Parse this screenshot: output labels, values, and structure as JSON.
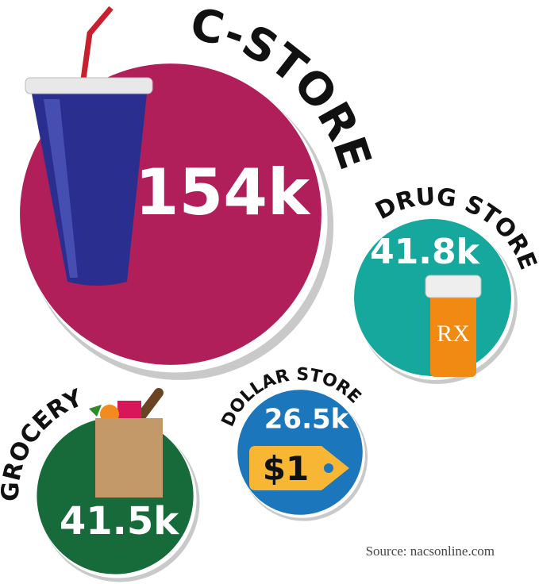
{
  "chart_data": {
    "type": "bubble",
    "categories": [
      "C-STORE",
      "DRUG STORE",
      "GROCERY",
      "DOLLAR STORE"
    ],
    "values": [
      154000,
      41800,
      41500,
      26500
    ],
    "value_labels": [
      "154k",
      "41.8k",
      "41.5k",
      "26.5k"
    ],
    "colors": [
      "#b01f5a",
      "#16a89d",
      "#176a39",
      "#1b76bb"
    ],
    "icon_texts": [
      "RX",
      "$1"
    ],
    "source": "Source: nacsonline.com"
  }
}
